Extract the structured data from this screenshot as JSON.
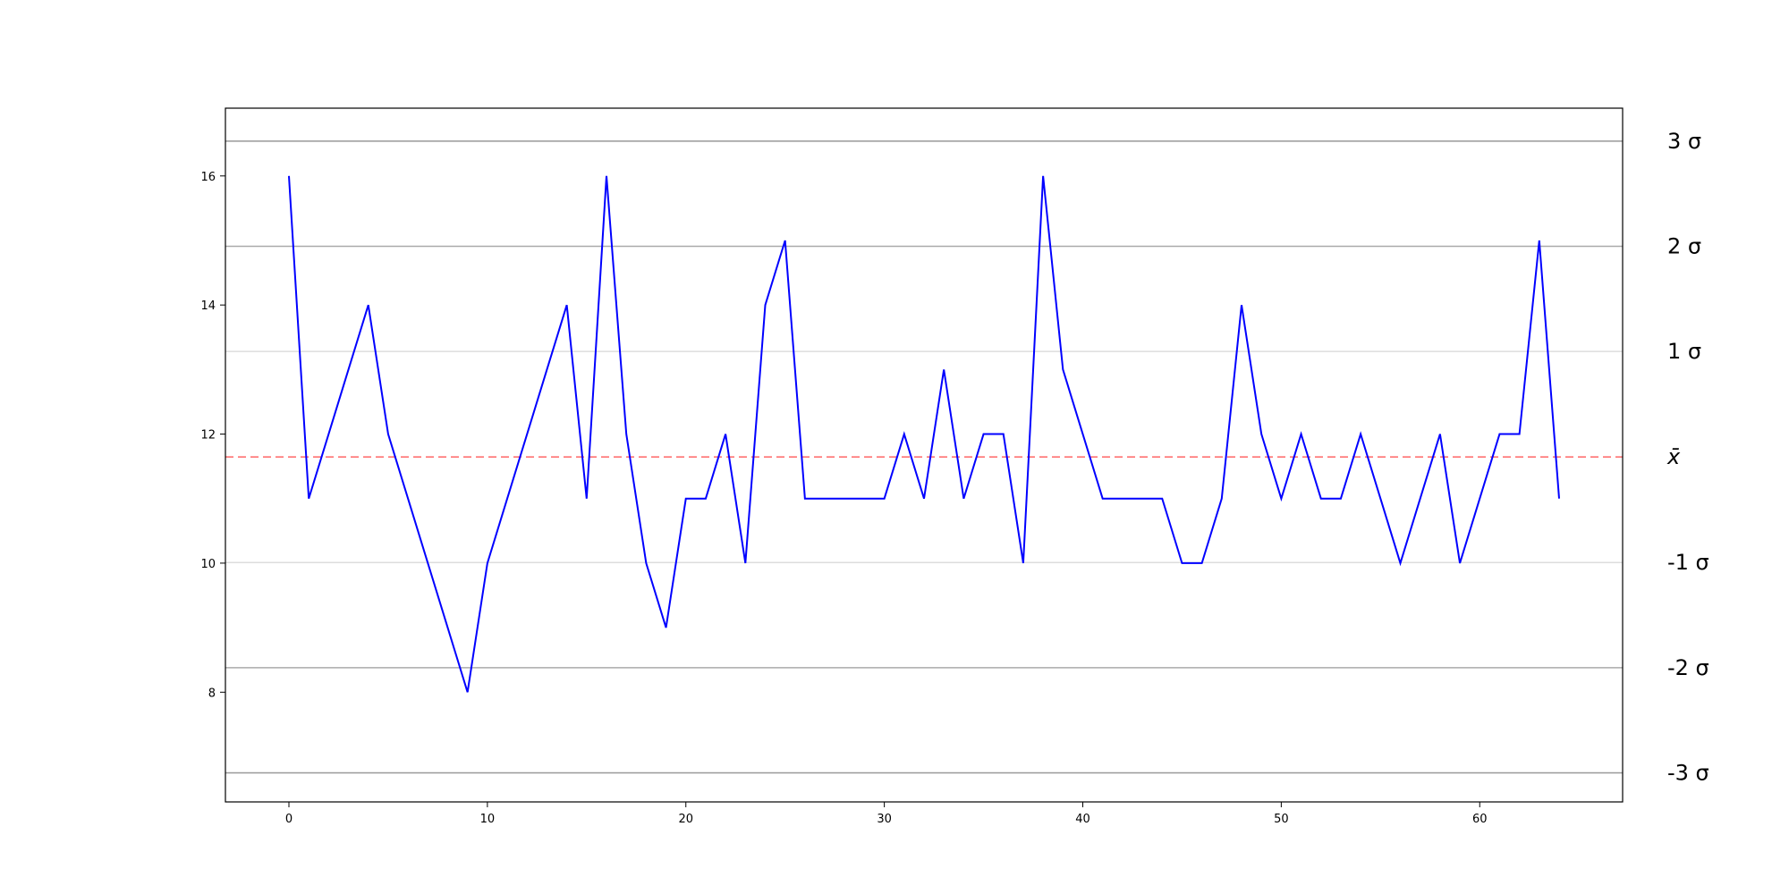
{
  "chart_data": {
    "type": "line",
    "title": "",
    "xlabel": "",
    "ylabel": "",
    "xlim": [
      -3.2,
      67.2
    ],
    "ylim": [
      6.3,
      17.05
    ],
    "xticks": [
      0,
      10,
      20,
      30,
      40,
      50,
      60
    ],
    "yticks": [
      8,
      10,
      12,
      14,
      16
    ],
    "series": [
      {
        "color": "#0000ff",
        "x": [
          0,
          1,
          2,
          3,
          4,
          5,
          6,
          7,
          8,
          9,
          10,
          11,
          12,
          13,
          14,
          15,
          16,
          17,
          18,
          19,
          20,
          21,
          22,
          23,
          24,
          25,
          26,
          27,
          28,
          29,
          30,
          31,
          32,
          33,
          34,
          35,
          36,
          37,
          38,
          39,
          40,
          41,
          42,
          43,
          44,
          45,
          46,
          47,
          48,
          49,
          50,
          51,
          52,
          53,
          54,
          55,
          56,
          57,
          58,
          59,
          60,
          61,
          62,
          63,
          64
        ],
        "values": [
          16,
          11,
          12,
          13,
          14,
          12,
          11,
          10,
          9,
          8,
          10,
          11,
          12,
          13,
          14,
          11,
          16,
          12,
          10,
          9,
          11,
          11,
          12,
          10,
          14,
          15,
          11,
          11,
          11,
          11,
          11,
          12,
          11,
          13,
          11,
          12,
          12,
          10,
          16,
          13,
          12,
          11,
          11,
          11,
          11,
          10,
          10,
          11,
          14,
          12,
          11,
          12,
          11,
          11,
          12,
          11,
          10,
          11,
          12,
          10,
          11,
          12,
          12,
          15,
          11
        ]
      }
    ],
    "mean_line": {
      "value": 11.646,
      "color": "#ff0000",
      "style": "dashed",
      "label": "x̄"
    },
    "sigma_lines": [
      {
        "value": 16.54,
        "label": "3 σ",
        "color": "#999999"
      },
      {
        "value": 14.91,
        "label": "2 σ",
        "color": "#aaaaaa"
      },
      {
        "value": 13.28,
        "label": "1 σ",
        "color": "#dddddd"
      },
      {
        "value": 10.01,
        "label": "-1 σ",
        "color": "#dddddd"
      },
      {
        "value": 8.38,
        "label": "-2 σ",
        "color": "#aaaaaa"
      },
      {
        "value": 6.75,
        "label": "-3 σ",
        "color": "#999999"
      }
    ]
  }
}
